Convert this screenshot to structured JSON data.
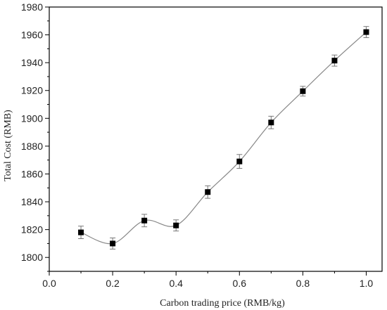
{
  "chart_data": {
    "type": "scatter",
    "title": "",
    "xlabel": "Carbon trading price (RMB/kg)",
    "ylabel": "Total Cost (RMB)",
    "xlim": [
      0.0,
      1.05
    ],
    "ylim": [
      1790,
      1980
    ],
    "x_ticks": [
      "0.0",
      "0.2",
      "0.4",
      "0.6",
      "0.8",
      "1.0"
    ],
    "y_ticks": [
      "1800",
      "1820",
      "1840",
      "1860",
      "1880",
      "1900",
      "1920",
      "1940",
      "1960",
      "1980"
    ],
    "grid": false,
    "legend": "none",
    "smooth_line": true,
    "colors": {
      "marker": "#000000",
      "line": "#888888",
      "error_bar": "#777777",
      "axis": "#000000"
    },
    "series": [
      {
        "x": [
          0.1,
          0.2,
          0.3,
          0.4,
          0.5,
          0.6,
          0.7,
          0.8,
          0.9,
          1.0
        ],
        "y": [
          1818,
          1810,
          1826.5,
          1823,
          1847,
          1869,
          1897,
          1919.5,
          1941.5,
          1962
        ],
        "error": [
          4.5,
          4,
          4.5,
          4,
          4.5,
          5,
          4.5,
          3.5,
          4,
          4
        ]
      }
    ]
  }
}
